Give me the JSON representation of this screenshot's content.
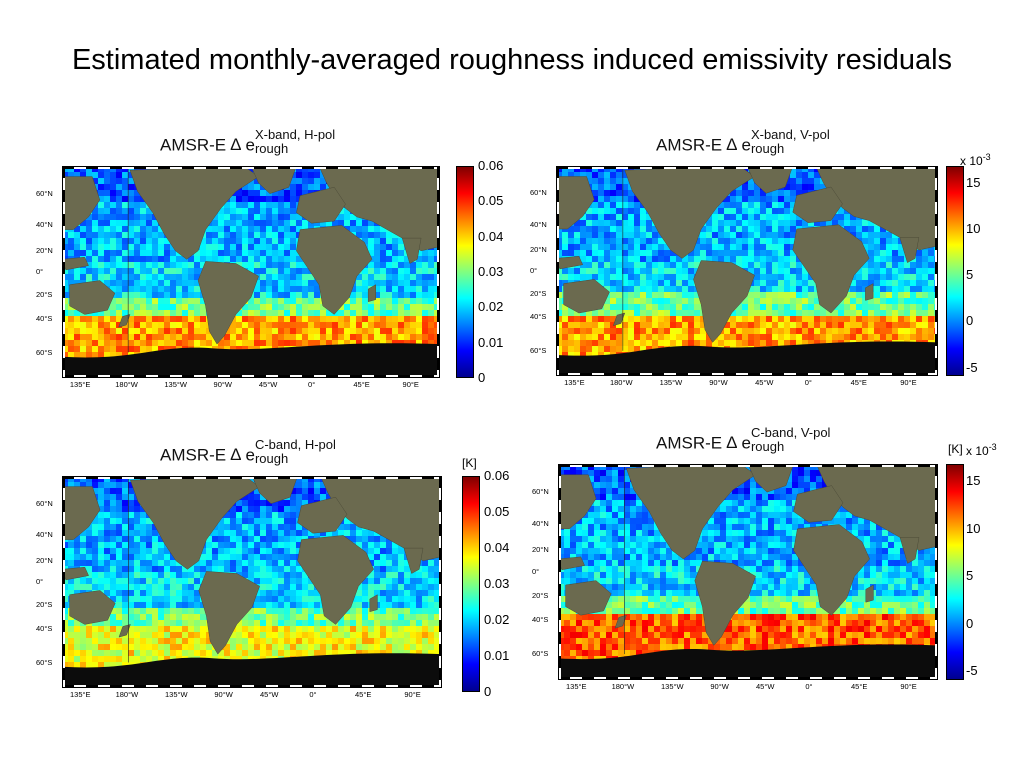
{
  "slide": {
    "title": "Estimated monthly-averaged roughness induced emissivity residuals"
  },
  "colormap": [
    "#00008f",
    "#0000ff",
    "#0080ff",
    "#00ffff",
    "#80ff80",
    "#ffff00",
    "#ff8000",
    "#ff0000",
    "#800000"
  ],
  "colors": {
    "land": "#6b6a4f",
    "ice": "#0c0c0c",
    "ocean_base": "#3a8ff0"
  },
  "panels": [
    {
      "id": "xh",
      "title_prefix": "AMSR-E",
      "delta": "Δ",
      "var": "e",
      "superscript": "X-band, H-pol",
      "subscript": "rough",
      "colorbar": {
        "ticks": [
          "0.06",
          "0.05",
          "0.04",
          "0.03",
          "0.02",
          "0.01",
          "0"
        ],
        "unit": "",
        "exponent": ""
      },
      "lat_labels": [
        "60°N",
        "40°N",
        "20°N",
        "0°",
        "20°S",
        "40°S",
        "60°S"
      ],
      "lon_labels": [
        "135°E",
        "180°W",
        "135°W",
        "90°W",
        "45°W",
        "0°",
        "45°E",
        "90°E"
      ]
    },
    {
      "id": "xv",
      "title_prefix": "AMSR-E",
      "delta": "Δ",
      "var": "e",
      "superscript": "X-band, V-pol",
      "subscript": "rough",
      "colorbar": {
        "ticks": [
          "15",
          "10",
          "5",
          "0",
          "-5"
        ],
        "unit": "",
        "exponent": "x 10-3"
      },
      "lat_labels": [
        "60°N",
        "40°N",
        "20°N",
        "0°",
        "20°S",
        "40°S",
        "60°S"
      ],
      "lon_labels": [
        "135°E",
        "180°W",
        "135°W",
        "90°W",
        "45°W",
        "0°",
        "45°E",
        "90°E"
      ]
    },
    {
      "id": "ch",
      "title_prefix": "AMSR-E",
      "delta": "Δ",
      "var": "e",
      "superscript": "C-band, H-pol",
      "subscript": "rough",
      "colorbar": {
        "ticks": [
          "0.06",
          "0.05",
          "0.04",
          "0.03",
          "0.02",
          "0.01",
          "0"
        ],
        "unit": "[K]",
        "exponent": ""
      },
      "lat_labels": [
        "60°N",
        "40°N",
        "20°N",
        "0°",
        "20°S",
        "40°S",
        "60°S"
      ],
      "lon_labels": [
        "135°E",
        "180°W",
        "135°W",
        "90°W",
        "45°W",
        "0°",
        "45°E",
        "90°E"
      ]
    },
    {
      "id": "cv",
      "title_prefix": "AMSR-E",
      "delta": "Δ",
      "var": "e",
      "superscript": "C-band, V-pol",
      "subscript": "rough",
      "colorbar": {
        "ticks": [
          "15",
          "10",
          "5",
          "0",
          "-5"
        ],
        "unit": "[K]",
        "exponent": "x 10-3"
      },
      "lat_labels": [
        "60°N",
        "40°N",
        "20°N",
        "0°",
        "20°S",
        "40°S",
        "60°S"
      ],
      "lon_labels": [
        "135°E",
        "180°W",
        "135°W",
        "90°W",
        "45°W",
        "0°",
        "45°E",
        "90°E"
      ]
    }
  ]
}
